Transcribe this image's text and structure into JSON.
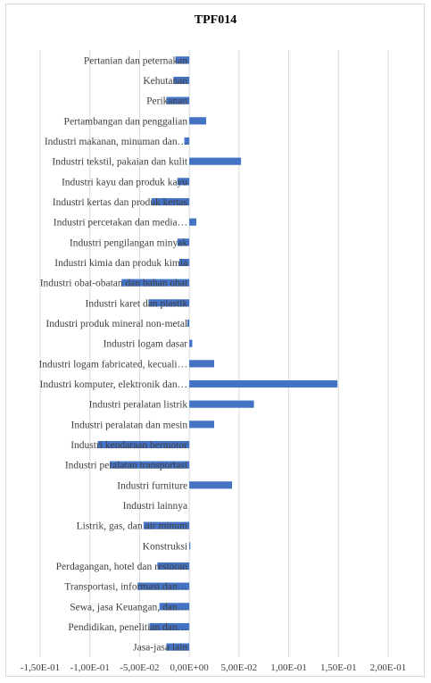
{
  "chart_data": {
    "type": "bar",
    "orientation": "horizontal",
    "title": "TPF014",
    "xlim": [
      -0.15,
      0.2
    ],
    "x_ticks": [
      "-1,50E-01",
      "-1,00E-01",
      "-5,00E-02",
      "0,00E+00",
      "5,00E-02",
      "1,00E-01",
      "1,50E-01",
      "2,00E-01"
    ],
    "grid": true,
    "legend": "none",
    "bar_color": "#4472c4",
    "categories": [
      "Pertanian dan peternakan",
      "Kehutanan",
      "Perikanan",
      "Pertambangan dan penggalian",
      "Industri makanan, minuman dan…",
      "Industri tekstil, pakaian dan kulit",
      "Industri kayu dan produk kayu",
      "Industri kertas dan produk kertas",
      "Industri percetakan dan media…",
      "Industri pengilangan minyak",
      "Industri kimia dan produk kimia",
      "Industri obat-obatan dan bahan obat",
      "Industri karet dan plastik",
      "Industri produk mineral non-metal",
      "Industri logam dasar",
      "Industri logam fabricated, kecuali…",
      "Industri komputer, elektronik dan…",
      "Industri peralatan listrik",
      "Industri peralatan dan mesin",
      "Industri kendaraan bermotor",
      "Industri peralatan transportasi",
      "Industri furniture",
      "Industri lainnya",
      "Listrik, gas, dan air minum",
      "Konstruksi",
      "Perdagangan, hotel dan restoran",
      "Transportasi, informasi dan…",
      "Sewa, jasa Keuangan, dan…",
      "Pendidikan, penelitian dan…",
      "Jasa-jasa lain"
    ],
    "values": [
      -0.014,
      -0.016,
      -0.023,
      0.017,
      -0.005,
      0.052,
      -0.012,
      -0.038,
      0.007,
      -0.012,
      -0.01,
      -0.068,
      -0.041,
      -0.002,
      0.003,
      0.025,
      0.149,
      0.065,
      0.025,
      -0.092,
      -0.08,
      0.043,
      0.0,
      -0.046,
      0.001,
      -0.032,
      -0.052,
      -0.03,
      -0.04,
      -0.023
    ]
  }
}
